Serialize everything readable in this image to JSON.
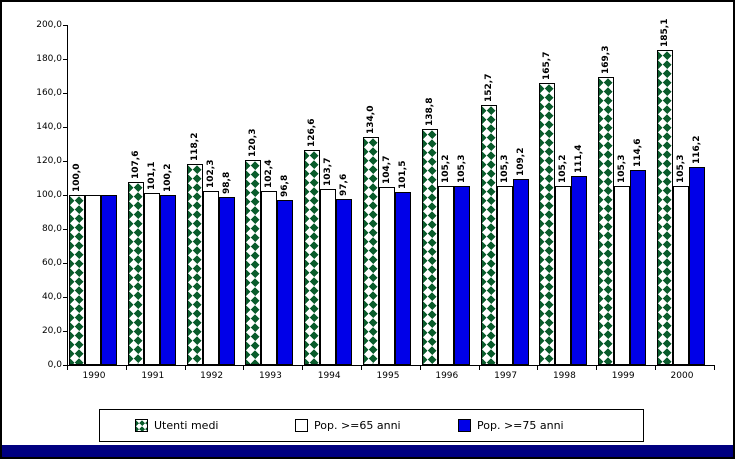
{
  "window": {
    "background": "#ffffff",
    "border_color": "#000000",
    "bottom_strip_color": "#000080"
  },
  "chart_data": {
    "type": "bar",
    "title": "",
    "xlabel": "",
    "ylabel": "",
    "ylim": [
      0,
      200
    ],
    "ytick_step": 20,
    "ytick_labels": [
      "0,0",
      "20,0",
      "40,0",
      "60,0",
      "80,0",
      "100,0",
      "120,0",
      "140,0",
      "160,0",
      "180,0",
      "200,0"
    ],
    "grid": false,
    "legend_position": "bottom",
    "categories": [
      "1990",
      "1991",
      "1992",
      "1993",
      "1994",
      "1995",
      "1996",
      "1997",
      "1998",
      "1999",
      "2000"
    ],
    "series": [
      {
        "name": "Utenti medi",
        "style": "pattern",
        "color": "#0a5c2c",
        "values": [
          100.0,
          107.6,
          118.2,
          120.3,
          126.6,
          134.0,
          138.8,
          152.7,
          165.7,
          169.3,
          185.1
        ],
        "labels": [
          "100,0",
          "107,6",
          "118,2",
          "120,3",
          "126,6",
          "134,0",
          "138,8",
          "152,7",
          "165,7",
          "169,3",
          "185,1"
        ]
      },
      {
        "name": "Pop. >=65 anni",
        "style": "white",
        "color": "#ffffff",
        "values": [
          100.0,
          101.1,
          102.3,
          102.4,
          103.7,
          104.7,
          105.2,
          105.3,
          105.2,
          105.3,
          105.3
        ],
        "labels": [
          "",
          "101,1",
          "102,3",
          "102,4",
          "103,7",
          "104,7",
          "105,2",
          "105,3",
          "105,2",
          "105,3",
          "105,3"
        ]
      },
      {
        "name": "Pop. >=75 anni",
        "style": "blue",
        "color": "#0000e8",
        "values": [
          100.0,
          100.2,
          98.8,
          96.8,
          97.6,
          101.5,
          105.3,
          109.2,
          111.4,
          114.6,
          116.2
        ],
        "labels": [
          "",
          "100,2",
          "98,8",
          "96,8",
          "97,6",
          "101,5",
          "105,3",
          "109,2",
          "111,4",
          "114,6",
          "116,2"
        ]
      }
    ]
  },
  "legend": {
    "items": [
      {
        "label": "Utenti medi"
      },
      {
        "label": "Pop. >=65 anni"
      },
      {
        "label": "Pop. >=75 anni"
      }
    ]
  }
}
